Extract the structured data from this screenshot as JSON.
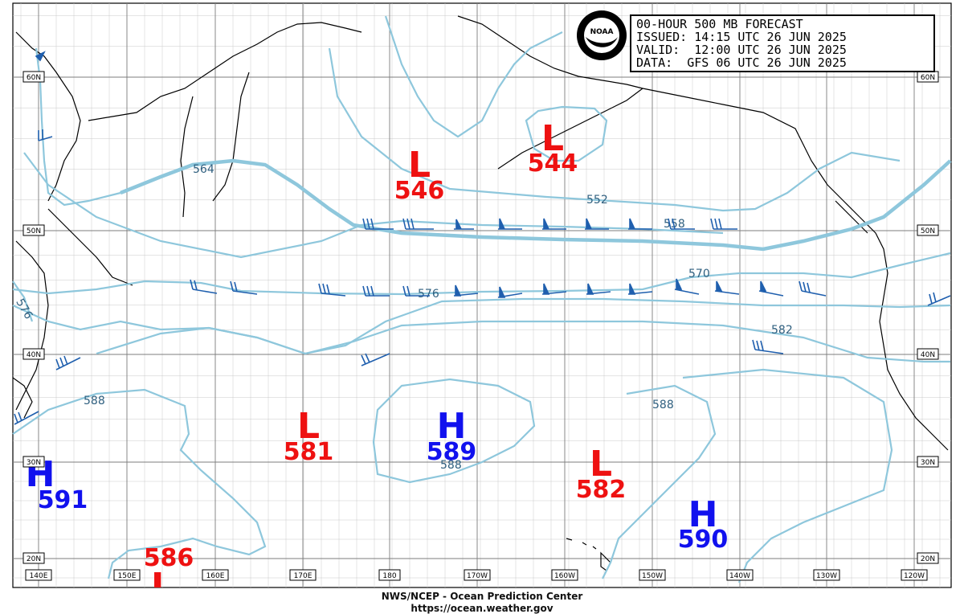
{
  "forecast": {
    "title": "00-HOUR 500 MB FORECAST",
    "issued": "ISSUED: 14:15 UTC 26 JUN 2025",
    "valid": "VALID:  12:00 UTC 26 JUN 2025",
    "data": "DATA:  GFS 06 UTC 26 JUN 2025"
  },
  "footer": {
    "line1": "NWS/NCEP - Ocean Prediction Center",
    "line2": "https://ocean.weather.gov"
  },
  "logo": {
    "text": "NOAA"
  },
  "lat_labels": [
    "60N",
    "50N",
    "40N",
    "30N",
    "20N"
  ],
  "lon_labels": [
    "140E",
    "150E",
    "160E",
    "170E",
    "180",
    "170W",
    "160W",
    "150W",
    "140W",
    "130W",
    "120W"
  ],
  "contour_labels": [
    "564",
    "552",
    "558",
    "570",
    "576",
    "576",
    "582",
    "588",
    "588",
    "588"
  ],
  "pressure_centers": [
    {
      "type": "L",
      "value": "546",
      "color": "#ee1111"
    },
    {
      "type": "L",
      "value": "544",
      "color": "#ee1111"
    },
    {
      "type": "L",
      "value": "581",
      "color": "#ee1111"
    },
    {
      "type": "H",
      "value": "589",
      "color": "#1111ee"
    },
    {
      "type": "L",
      "value": "582",
      "color": "#ee1111"
    },
    {
      "type": "H",
      "value": "591",
      "color": "#1111ee"
    },
    {
      "type": "H",
      "value": "590",
      "color": "#1111ee"
    },
    {
      "type": "L",
      "value": "586",
      "color": "#ee1111"
    }
  ],
  "colors": {
    "contour": "#8ec7dc",
    "coast": "#000000",
    "grid": "#888888",
    "barb": "#1f5fae",
    "low": "#ee1111",
    "high": "#1111ee"
  }
}
